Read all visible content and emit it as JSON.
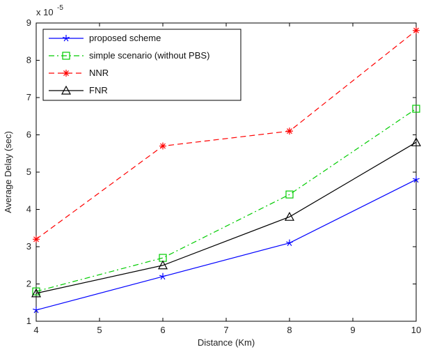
{
  "chart_data": {
    "type": "line",
    "xlabel": "Distance (Km)",
    "ylabel": "Average Delay (sec)",
    "y_exponent_base": "x 10",
    "y_exponent_power": "-5",
    "xlim": [
      4,
      10
    ],
    "ylim": [
      1,
      9
    ],
    "x_ticks": [
      "4",
      "5",
      "6",
      "7",
      "8",
      "9",
      "10"
    ],
    "y_ticks": [
      "1",
      "2",
      "3",
      "4",
      "5",
      "6",
      "7",
      "8",
      "9"
    ],
    "grid": false,
    "legend_position": "top-left",
    "x": [
      4,
      6,
      8,
      10
    ],
    "series": [
      {
        "name": "proposed scheme",
        "values": [
          1.3,
          2.2,
          3.1,
          4.8
        ],
        "color": "#0000ff",
        "dash": "solid",
        "marker": "star"
      },
      {
        "name": "simple scenario (without PBS)",
        "values": [
          1.8,
          2.7,
          4.4,
          6.7
        ],
        "color": "#00cc00",
        "dash": "dashdot",
        "marker": "square"
      },
      {
        "name": "NNR",
        "values": [
          3.2,
          5.7,
          6.1,
          8.8
        ],
        "color": "#ff0000",
        "dash": "dashed",
        "marker": "asterisk"
      },
      {
        "name": "FNR",
        "values": [
          1.75,
          2.5,
          3.8,
          5.8
        ],
        "color": "#000000",
        "dash": "solid",
        "marker": "triangle"
      }
    ]
  }
}
